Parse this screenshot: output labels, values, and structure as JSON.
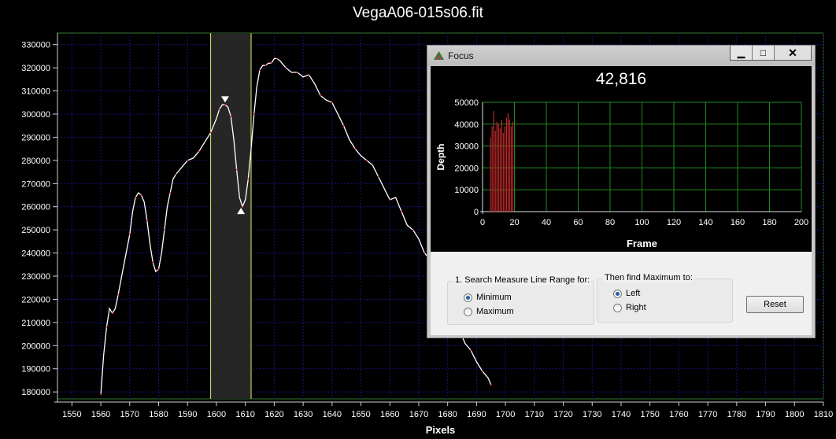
{
  "main": {
    "title": "VegaA06-015s06.fit",
    "xlabel": "Pixels"
  },
  "chart_data": {
    "type": "line",
    "title": "VegaA06-015s06.fit",
    "xlabel": "Pixels",
    "ylabel": "",
    "xlim": [
      1545,
      1810
    ],
    "ylim": [
      177000,
      335000
    ],
    "x_ticks": [
      1550,
      1560,
      1570,
      1580,
      1590,
      1600,
      1610,
      1620,
      1630,
      1640,
      1650,
      1660,
      1670,
      1680,
      1690,
      1700,
      1710,
      1720,
      1730,
      1740,
      1750,
      1760,
      1770,
      1780,
      1790,
      1800,
      1810
    ],
    "y_ticks": [
      180000,
      190000,
      200000,
      210000,
      220000,
      230000,
      240000,
      250000,
      260000,
      270000,
      280000,
      290000,
      300000,
      310000,
      320000,
      330000
    ],
    "y_tick_labels": [
      "180000",
      "190000",
      "200000",
      "210000",
      "220000",
      "230000",
      "240000",
      "250000",
      "260000",
      "270000",
      "280000",
      "290000",
      "300000",
      "310000",
      "320000",
      "330000"
    ],
    "measure_range": [
      1598,
      1612
    ],
    "markers": [
      {
        "kind": "maximum",
        "x": 1603,
        "y": 306000
      },
      {
        "kind": "minimum",
        "x": 1608.5,
        "y": 258500
      }
    ],
    "series": [
      {
        "line_color": "#ffffff",
        "point_color": "#ff2020",
        "x": [
          1560,
          1561,
          1562,
          1563,
          1564,
          1565,
          1566,
          1568,
          1570,
          1571,
          1572,
          1573,
          1574,
          1575,
          1576,
          1577,
          1578,
          1579,
          1580,
          1581,
          1582,
          1583,
          1584,
          1585,
          1586,
          1588,
          1590,
          1592,
          1594,
          1596,
          1598,
          1600,
          1601,
          1602,
          1603,
          1604,
          1605,
          1606,
          1607,
          1608,
          1609,
          1610,
          1611,
          1612,
          1613,
          1614,
          1615,
          1616,
          1617,
          1618,
          1619,
          1620,
          1621,
          1622,
          1624,
          1626,
          1628,
          1630,
          1632,
          1634,
          1636,
          1638,
          1640,
          1642,
          1644,
          1646,
          1648,
          1650,
          1652,
          1654,
          1656,
          1658,
          1660,
          1662,
          1664,
          1666,
          1668,
          1670,
          1672,
          1674,
          1676,
          1678,
          1680,
          1682,
          1684,
          1686,
          1688,
          1690,
          1692,
          1694,
          1695
        ],
        "y": [
          179000,
          196000,
          208000,
          216000,
          214000,
          216000,
          222000,
          235000,
          248000,
          258000,
          264000,
          266000,
          265000,
          262000,
          254000,
          244000,
          236000,
          232000,
          233000,
          240000,
          250000,
          260000,
          266000,
          272000,
          274000,
          277000,
          280000,
          281000,
          284000,
          288000,
          292000,
          298000,
          302000,
          304000,
          304000,
          303000,
          299000,
          289000,
          276000,
          264000,
          260000,
          263000,
          272000,
          285000,
          300000,
          312000,
          319000,
          321000,
          321000,
          322000,
          322000,
          324000,
          324000,
          323000,
          320000,
          318000,
          318000,
          316000,
          317000,
          313000,
          308000,
          306000,
          305000,
          300000,
          295000,
          289000,
          285000,
          282000,
          280000,
          278000,
          273000,
          268000,
          263000,
          264000,
          258000,
          252000,
          250000,
          246000,
          240000,
          237000,
          234000,
          227000,
          220000,
          214000,
          207000,
          201000,
          198000,
          193000,
          189000,
          186000,
          183000
        ]
      }
    ]
  },
  "focus_window": {
    "title": "Focus",
    "value": "42,816",
    "buttons": {
      "minimize": "▁",
      "maximize": "□",
      "close": "✕"
    },
    "chart_data": {
      "type": "bar",
      "xlabel": "Frame",
      "ylabel": "Depth",
      "xlim": [
        0,
        200
      ],
      "ylim": [
        0,
        50000
      ],
      "x_ticks": [
        0,
        20,
        40,
        60,
        80,
        100,
        120,
        140,
        160,
        180,
        200
      ],
      "y_ticks": [
        0,
        10000,
        20000,
        30000,
        40000,
        50000
      ],
      "bar_color": "#c0282a",
      "x": [
        5,
        6,
        7,
        8,
        9,
        10,
        11,
        12,
        13,
        14,
        15,
        16,
        17,
        18,
        19
      ],
      "values": [
        34000,
        39000,
        46000,
        37000,
        41000,
        40000,
        38000,
        42000,
        36000,
        39000,
        43000,
        45000,
        42000,
        39000,
        41000
      ]
    },
    "search_group": {
      "title": "1. Search Measure Line Range for:",
      "options": [
        {
          "label": "Minimum",
          "checked": true
        },
        {
          "label": "Maximum",
          "checked": false
        }
      ]
    },
    "direction_group": {
      "title": "Then find Maximum to:",
      "options": [
        {
          "label": "Left",
          "checked": true
        },
        {
          "label": "Right",
          "checked": false
        }
      ]
    },
    "reset_label": "Reset"
  }
}
